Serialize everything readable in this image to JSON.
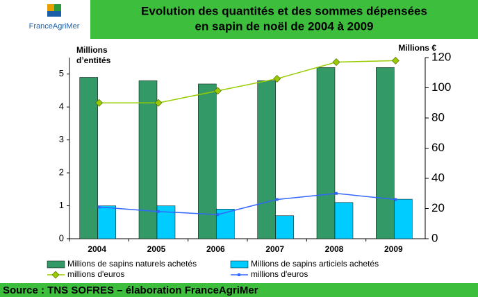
{
  "logo": "FranceAgriMer",
  "source": "Source : TNS SOFRES – élaboration FranceAgriMer",
  "chart_data": {
    "type": "bar",
    "title": [
      "Evolution des quantités et des sommes dépensées",
      "en sapin de noël  de 2004 à 2009"
    ],
    "y_label": [
      "Millions",
      "d’entités"
    ],
    "y2_label": "Millions €",
    "categories": [
      "2004",
      "2005",
      "2006",
      "2007",
      "2008",
      "2009"
    ],
    "series": [
      {
        "name": "Millions de sapins naturels achetés",
        "type": "bar",
        "color": "#339966",
        "values": [
          4.9,
          4.8,
          4.7,
          4.8,
          5.2,
          5.2
        ]
      },
      {
        "name": "Millions de sapins articiels achetés",
        "type": "bar",
        "color": "#00ccff",
        "values": [
          1.0,
          1.0,
          0.9,
          0.7,
          1.1,
          1.2
        ]
      },
      {
        "name": "millions d'euros",
        "type": "line",
        "axis": "y2",
        "marker": "diamond",
        "color": "#99cc00",
        "values": [
          90,
          90,
          98,
          106,
          117,
          118
        ]
      },
      {
        "name": "millions d'euros",
        "type": "line",
        "axis": "y2",
        "marker": "square",
        "color": "#3366ff",
        "values": [
          21,
          18,
          16,
          26,
          30,
          26
        ]
      }
    ],
    "ylim": [
      0,
      5.5
    ],
    "yticks": [
      0,
      1,
      2,
      3,
      4,
      5
    ],
    "y2lim": [
      0,
      120
    ],
    "y2ticks": [
      0,
      20,
      40,
      60,
      80,
      100,
      120
    ]
  }
}
